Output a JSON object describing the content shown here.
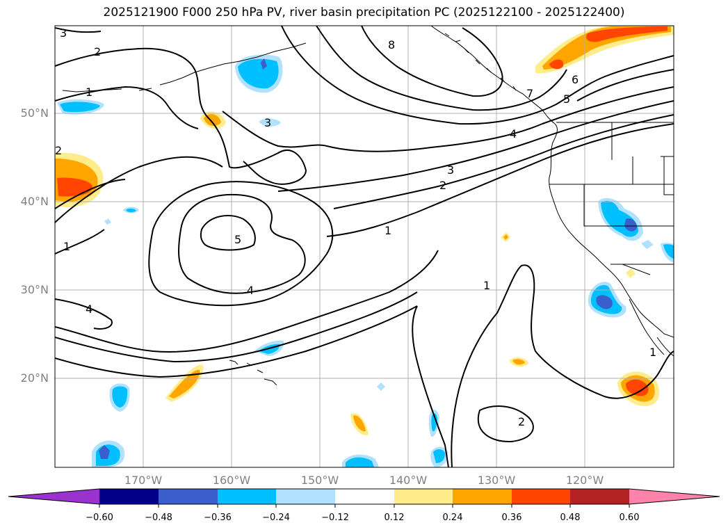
{
  "title": "2025121900 F000 250 hPa PV, river basin precipitation PC (2025122100 - 2025122400)",
  "map": {
    "lon_range": [
      -180,
      -110
    ],
    "lat_range": [
      10,
      60
    ],
    "lat_labels": [
      "50°N",
      "40°N",
      "30°N",
      "20°N"
    ],
    "lon_labels": [
      "170°W",
      "160°W",
      "150°W",
      "140°W",
      "130°W",
      "120°W"
    ],
    "contour_labels": [
      "3",
      "2",
      "1",
      "8",
      "7",
      "6",
      "5",
      "4",
      "3",
      "2",
      "1",
      "5",
      "4",
      "4",
      "1",
      "1",
      "2",
      "1",
      "3",
      "2"
    ]
  },
  "colorbar": {
    "ticks": [
      "−0.60",
      "−0.48",
      "−0.36",
      "−0.24",
      "−0.12",
      "0.12",
      "0.24",
      "0.36",
      "0.48",
      "0.60"
    ],
    "colors": [
      "#9a32cd",
      "#00008b",
      "#3a5fcd",
      "#00bfff",
      "#b0e2ff",
      "#ffffff",
      "#ffec8b",
      "#ffa500",
      "#ff4500",
      "#b22222",
      "#ff82ab"
    ]
  }
}
